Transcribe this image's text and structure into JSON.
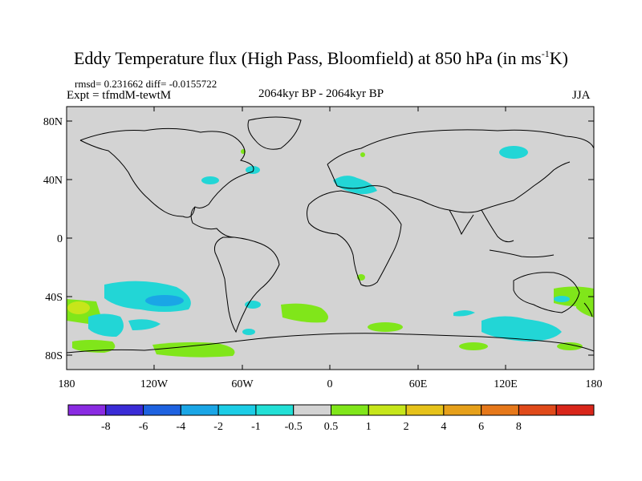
{
  "title": {
    "main": "Eddy Temperature flux (High Pass, Bloomfield) at 850 hPa (in ms",
    "sup": "-1",
    "tail": "K)"
  },
  "stats": {
    "rmsd_label": "rmsd=",
    "rmsd": "0.231662",
    "diff_label": "diff=",
    "diff": "-0.0155722"
  },
  "expt": "Expt = tfmdM-tewtM",
  "period": "2064kyr BP - 2064kyr BP",
  "season": "JJA",
  "map": {
    "background": "#d3d3d3",
    "y_labels": [
      "80N",
      "40N",
      "0",
      "40S",
      "80S"
    ],
    "x_labels": [
      "180",
      "120W",
      "60W",
      "0",
      "60E",
      "120E",
      "180"
    ]
  },
  "colorbar": {
    "colors": [
      "#8a2be2",
      "#3a2bd6",
      "#1e62e0",
      "#1aa6e6",
      "#1ccde6",
      "#22e0d6",
      "#d3d3d3",
      "#80e61a",
      "#c6e61a",
      "#e6c21a",
      "#e6a01a",
      "#e6781a",
      "#e04a1a",
      "#d9261a"
    ],
    "labels": [
      "-8",
      "-6",
      "-4",
      "-2",
      "-1",
      "-0.5",
      "0.5",
      "1",
      "2",
      "4",
      "6",
      "8"
    ]
  },
  "chart_data": {
    "type": "map-contour",
    "variable": "Eddy Temperature flux (High Pass, Bloomfield) at 850 hPa",
    "units": "ms-1K",
    "season": "JJA",
    "rmsd": 0.231662,
    "diff": -0.0155722,
    "levels": [
      -8,
      -6,
      -4,
      -2,
      -1,
      -0.5,
      0.5,
      1,
      2,
      4,
      6,
      8
    ],
    "lon_range": [
      -180,
      180
    ],
    "lat_range": [
      -90,
      90
    ]
  }
}
